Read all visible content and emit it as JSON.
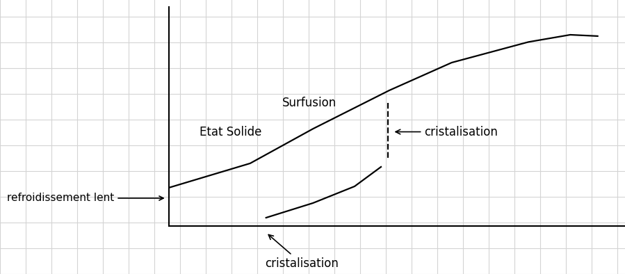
{
  "chart_data": {
    "type": "line",
    "xlim": [
      0,
      100
    ],
    "ylim": [
      0,
      100
    ],
    "tick_labels": false,
    "series": [
      {
        "color": "#000000",
        "line_style": "solid",
        "x": [
          0,
          17.8,
          31.6,
          48.3,
          62,
          78.8,
          88,
          94
        ],
        "values": [
          17.5,
          28.6,
          44.4,
          61.9,
          74.6,
          84,
          87.3,
          86.7
        ]
      },
      {
        "color": "#000000",
        "line_style": "solid",
        "x": [
          21.3,
          31.6,
          40.7,
          46.5
        ],
        "values": [
          3.8,
          10.5,
          18.1,
          27
        ]
      },
      {
        "color": "#000000",
        "line_style": "dashed",
        "x": [
          48,
          48
        ],
        "values": [
          56.2,
          30.8
        ]
      }
    ],
    "annotations": [
      "Surfusion",
      "Etat Solide",
      "cristalisation",
      "cristalisation",
      "refroidissement lent"
    ]
  }
}
